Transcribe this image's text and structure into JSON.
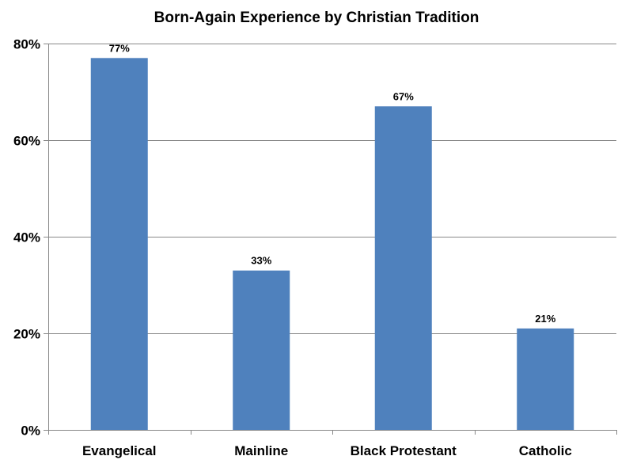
{
  "chart_data": {
    "type": "bar",
    "title": "Born-Again Experience by Christian Tradition",
    "categories": [
      "Evangelical",
      "Mainline",
      "Black Protestant",
      "Catholic"
    ],
    "values": [
      77,
      33,
      67,
      21
    ],
    "data_labels": [
      "77%",
      "33%",
      "67%",
      "21%"
    ],
    "xlabel": "",
    "ylabel": "",
    "ylim": [
      0,
      80
    ],
    "yticks": [
      0,
      20,
      40,
      60,
      80
    ],
    "ytick_labels": [
      "0%",
      "20%",
      "40%",
      "60%",
      "80%"
    ],
    "grid": true,
    "legend": "none",
    "bar_color": "#4F81BD"
  }
}
